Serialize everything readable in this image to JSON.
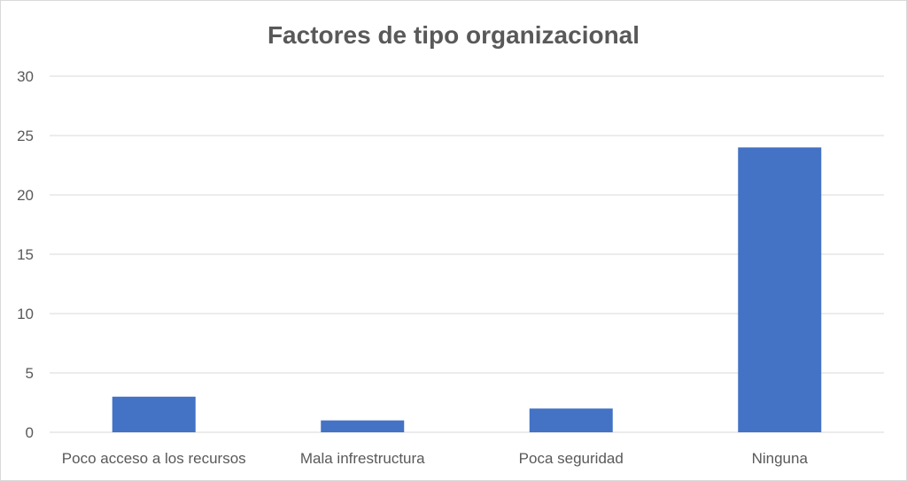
{
  "chart_data": {
    "type": "bar",
    "title": "Factores de tipo organizacional",
    "xlabel": "",
    "ylabel": "",
    "categories": [
      "Poco acceso a los recursos",
      "Mala infrestructura",
      "Poca seguridad",
      "Ninguna"
    ],
    "values": [
      3,
      1,
      2,
      24
    ],
    "ylim": [
      0,
      30
    ],
    "yticks": [
      0,
      5,
      10,
      15,
      20,
      25,
      30
    ],
    "grid": true,
    "legend": "none",
    "bar_color": "#4472c4",
    "grid_color": "#d9d9d9",
    "text_color": "#595959"
  }
}
